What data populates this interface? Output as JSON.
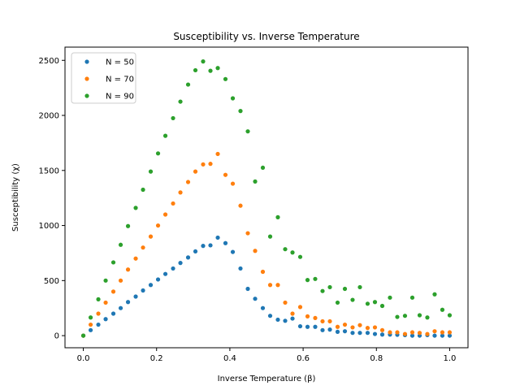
{
  "chart_data": {
    "type": "scatter",
    "title": "Susceptibility vs. Inverse Temperature",
    "xlabel": "Inverse Temperature (β)",
    "ylabel": "Susceptibility (χ)",
    "xlim": [
      -0.05,
      1.05
    ],
    "ylim": [
      -110,
      2620
    ],
    "xticks": [
      0.0,
      0.2,
      0.4,
      0.6,
      0.8,
      1.0
    ],
    "xtick_labels": [
      "0.0",
      "0.2",
      "0.4",
      "0.6",
      "0.8",
      "1.0"
    ],
    "yticks": [
      0,
      500,
      1000,
      1500,
      2000,
      2500
    ],
    "ytick_labels": [
      "0",
      "500",
      "1000",
      "1500",
      "2000",
      "2500"
    ],
    "grid": false,
    "legend_position": "top-left",
    "x": [
      0.0,
      0.02,
      0.041,
      0.061,
      0.082,
      0.102,
      0.122,
      0.143,
      0.163,
      0.184,
      0.204,
      0.224,
      0.245,
      0.265,
      0.286,
      0.306,
      0.327,
      0.347,
      0.367,
      0.388,
      0.408,
      0.429,
      0.449,
      0.469,
      0.49,
      0.51,
      0.531,
      0.551,
      0.571,
      0.592,
      0.612,
      0.633,
      0.653,
      0.673,
      0.694,
      0.714,
      0.735,
      0.755,
      0.776,
      0.796,
      0.816,
      0.837,
      0.857,
      0.878,
      0.898,
      0.918,
      0.939,
      0.959,
      0.98,
      1.0
    ],
    "series": [
      {
        "name": "N = 50",
        "color": "#1f77b4",
        "values": [
          0,
          50,
          100,
          150,
          200,
          250,
          305,
          355,
          410,
          460,
          510,
          560,
          610,
          660,
          710,
          765,
          815,
          820,
          890,
          840,
          760,
          610,
          425,
          335,
          250,
          180,
          145,
          135,
          155,
          85,
          80,
          80,
          50,
          55,
          35,
          40,
          25,
          25,
          25,
          15,
          10,
          10,
          8,
          5,
          0,
          0,
          5,
          0,
          0,
          0
        ]
      },
      {
        "name": "N = 70",
        "color": "#ff7f0e",
        "values": [
          0,
          100,
          200,
          300,
          400,
          500,
          600,
          700,
          800,
          900,
          1000,
          1100,
          1200,
          1300,
          1395,
          1490,
          1555,
          1560,
          1650,
          1460,
          1380,
          1180,
          930,
          770,
          580,
          460,
          460,
          300,
          200,
          260,
          175,
          160,
          130,
          130,
          80,
          100,
          75,
          95,
          70,
          75,
          50,
          30,
          30,
          15,
          30,
          25,
          15,
          40,
          30,
          30
        ]
      },
      {
        "name": "N = 90",
        "color": "#2ca02c",
        "values": [
          0,
          165,
          330,
          500,
          665,
          825,
          995,
          1160,
          1325,
          1490,
          1655,
          1815,
          1975,
          2125,
          2280,
          2410,
          2490,
          2405,
          2430,
          2330,
          2155,
          2040,
          1855,
          1400,
          1525,
          900,
          1075,
          785,
          755,
          715,
          505,
          515,
          405,
          440,
          300,
          425,
          325,
          440,
          290,
          305,
          270,
          345,
          170,
          180,
          345,
          185,
          165,
          375,
          235,
          185
        ]
      }
    ]
  }
}
